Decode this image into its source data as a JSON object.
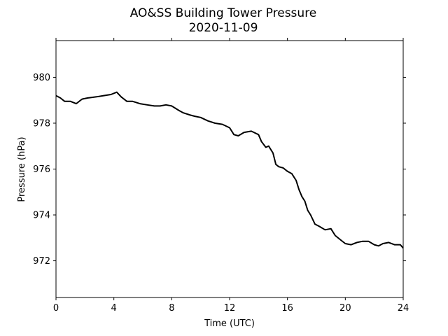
{
  "chart_data": {
    "type": "line",
    "title": "AO&SS Building Tower Pressure",
    "subtitle": "2020-11-09",
    "xlabel": "Time (UTC)",
    "ylabel": "Pressure (hPa)",
    "xlim": [
      0,
      24
    ],
    "ylim": [
      970.4,
      981.6
    ],
    "xticks": [
      0,
      4,
      8,
      12,
      16,
      20,
      24
    ],
    "yticks": [
      972,
      974,
      976,
      978,
      980
    ],
    "grid": false,
    "line_color": "#000000",
    "series": [
      {
        "x": [
          0,
          0.3,
          0.6,
          1.0,
          1.4,
          1.8,
          2.2,
          2.8,
          3.3,
          3.8,
          4.2,
          4.5,
          4.9,
          5.3,
          5.8,
          6.3,
          6.8,
          7.2,
          7.6,
          8.0,
          8.5,
          8.8,
          9.3,
          9.6,
          10.0,
          10.5,
          11.0,
          11.5,
          12.0,
          12.3,
          12.6,
          13.0,
          13.5,
          14.0,
          14.2,
          14.5,
          14.7,
          15.0,
          15.2,
          15.4,
          15.7,
          16.0,
          16.3,
          16.6,
          16.8,
          17.0,
          17.2,
          17.4,
          17.6,
          17.9,
          18.2,
          18.6,
          19.0,
          19.3,
          19.7,
          20.0,
          20.4,
          20.8,
          21.2,
          21.6,
          22.0,
          22.3,
          22.6,
          23.0,
          23.4,
          23.8,
          24.0
        ],
        "y": [
          979.2,
          979.1,
          978.95,
          978.95,
          978.85,
          979.05,
          979.1,
          979.15,
          979.2,
          979.25,
          979.35,
          979.15,
          978.95,
          978.95,
          978.85,
          978.8,
          978.75,
          978.75,
          978.8,
          978.75,
          978.55,
          978.45,
          978.35,
          978.3,
          978.25,
          978.1,
          978.0,
          977.95,
          977.8,
          977.5,
          977.45,
          977.6,
          977.65,
          977.5,
          977.2,
          976.95,
          977.0,
          976.7,
          976.2,
          976.1,
          976.05,
          975.9,
          975.8,
          975.5,
          975.1,
          974.8,
          974.6,
          974.2,
          974.0,
          973.6,
          973.5,
          973.35,
          973.4,
          973.1,
          972.9,
          972.75,
          972.7,
          972.8,
          972.85,
          972.85,
          972.7,
          972.65,
          972.75,
          972.8,
          972.7,
          972.7,
          972.55
        ]
      }
    ]
  }
}
